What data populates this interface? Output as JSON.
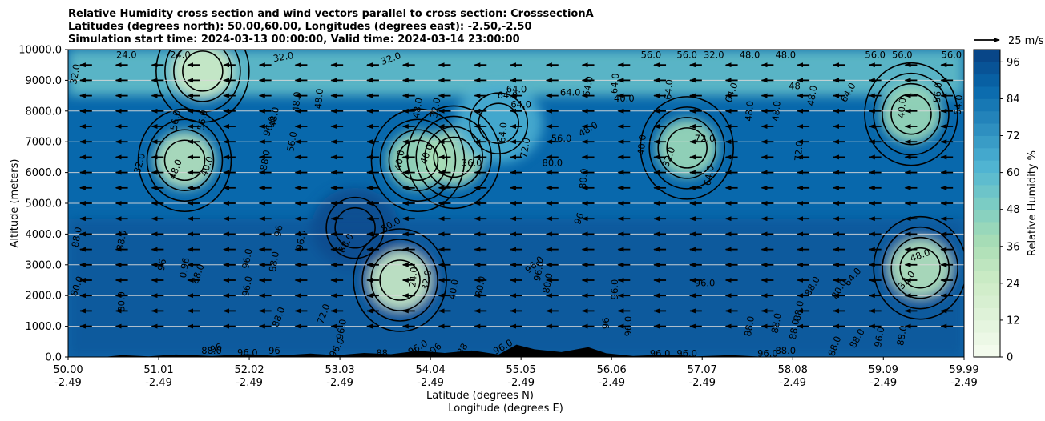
{
  "chart_data": {
    "type": "heatmap",
    "title_lines": [
      "Relative Humidity cross section and wind vectors parallel to cross section: CrosssectionA",
      "Latitudes (degrees north): 50.00,60.00, Longitudes (degrees east): -2.50,-2.50",
      "Simulation start time: 2024-03-13 00:00:00, Valid time: 2024-03-14 23:00:00"
    ],
    "ylabel": "Altitude (meters)",
    "xlabel_lat": "Latitude (degrees N)",
    "xlabel_lon": "Longitude (degrees E)",
    "colorbar_label": "Relative Humidity %",
    "ylim": [
      0,
      10000
    ],
    "xlim": [
      50.0,
      59.99
    ],
    "grid": "horizontal",
    "y_ticks": [
      {
        "value": 0,
        "label": "0.0"
      },
      {
        "value": 1000,
        "label": "1000.0"
      },
      {
        "value": 2000,
        "label": "2000.0"
      },
      {
        "value": 3000,
        "label": "3000.0"
      },
      {
        "value": 4000,
        "label": "4000.0"
      },
      {
        "value": 5000,
        "label": "5000.0"
      },
      {
        "value": 6000,
        "label": "6000.0"
      },
      {
        "value": 7000,
        "label": "7000.0"
      },
      {
        "value": 8000,
        "label": "8000.0"
      },
      {
        "value": 9000,
        "label": "9000.0"
      },
      {
        "value": 10000,
        "label": "10000.0"
      }
    ],
    "x_ticks": [
      {
        "lat": 50.0,
        "label_lat": "50.00",
        "label_lon": "-2.49"
      },
      {
        "lat": 51.01,
        "label_lat": "51.01",
        "label_lon": "-2.49"
      },
      {
        "lat": 52.02,
        "label_lat": "52.02",
        "label_lon": "-2.49"
      },
      {
        "lat": 53.03,
        "label_lat": "53.03",
        "label_lon": "-2.49"
      },
      {
        "lat": 54.04,
        "label_lat": "54.04",
        "label_lon": "-2.49"
      },
      {
        "lat": 55.05,
        "label_lat": "55.05",
        "label_lon": "-2.49"
      },
      {
        "lat": 56.06,
        "label_lat": "56.06",
        "label_lon": "-2.49"
      },
      {
        "lat": 57.07,
        "label_lat": "57.07",
        "label_lon": "-2.49"
      },
      {
        "lat": 58.08,
        "label_lat": "58.08",
        "label_lon": "-2.49"
      },
      {
        "lat": 59.09,
        "label_lat": "59.09",
        "label_lon": "-2.49"
      },
      {
        "lat": 59.99,
        "label_lat": "59.99",
        "label_lon": "-2.49"
      }
    ],
    "colorbar": {
      "min": 0,
      "max": 100,
      "step": 4,
      "tick_values": [
        0,
        12,
        24,
        36,
        48,
        60,
        72,
        84,
        96
      ],
      "tick_labels": [
        "0",
        "12",
        "24",
        "36",
        "48",
        "60",
        "72",
        "84",
        "96"
      ],
      "colormap": "GnBu",
      "color_stops": [
        "#f7fcf0",
        "#e0f3db",
        "#ccebc5",
        "#a8ddb5",
        "#7bccc4",
        "#4eb3d3",
        "#2b8cbe",
        "#0868ac",
        "#084081"
      ]
    },
    "humidity_features": [
      {
        "lat": 51.3,
        "alt": 6400,
        "rh": 32
      },
      {
        "lat": 53.7,
        "alt": 2500,
        "rh": 24
      },
      {
        "lat": 53.9,
        "alt": 6400,
        "rh": 40
      },
      {
        "lat": 54.3,
        "alt": 6500,
        "rh": 36
      },
      {
        "lat": 56.9,
        "alt": 6800,
        "rh": 40
      },
      {
        "lat": 59.5,
        "alt": 2900,
        "rh": 32
      },
      {
        "lat": 59.4,
        "alt": 7900,
        "rh": 40
      },
      {
        "lat": 51.5,
        "alt": 9300,
        "rh": 24
      },
      {
        "lat": 54.8,
        "alt": 7600,
        "rh": 64
      },
      {
        "lat": 53.2,
        "alt": 4200,
        "rh": 96
      }
    ],
    "contour_labels": [
      {
        "lat": 50.65,
        "alt": 9820,
        "text": "24.0",
        "rot": 0
      },
      {
        "lat": 51.25,
        "alt": 9820,
        "text": "24.0",
        "rot": 0
      },
      {
        "lat": 52.4,
        "alt": 9750,
        "text": "32.0",
        "rot": -10
      },
      {
        "lat": 53.6,
        "alt": 9700,
        "text": "32.0",
        "rot": -20
      },
      {
        "lat": 56.5,
        "alt": 9820,
        "text": "56.0",
        "rot": 0
      },
      {
        "lat": 56.9,
        "alt": 9820,
        "text": "56.0",
        "rot": 0
      },
      {
        "lat": 57.2,
        "alt": 9820,
        "text": "32.0",
        "rot": 0
      },
      {
        "lat": 57.6,
        "alt": 9820,
        "text": "48.0",
        "rot": 0
      },
      {
        "lat": 58.0,
        "alt": 9820,
        "text": "48.0",
        "rot": 0
      },
      {
        "lat": 59.0,
        "alt": 9820,
        "text": "56.0",
        "rot": 0
      },
      {
        "lat": 59.3,
        "alt": 9820,
        "text": "56.0",
        "rot": 0
      },
      {
        "lat": 59.85,
        "alt": 9820,
        "text": "56.0",
        "rot": 0
      },
      {
        "lat": 50.08,
        "alt": 9200,
        "text": "32.0",
        "rot": -80
      },
      {
        "lat": 51.2,
        "alt": 7700,
        "text": "56.0",
        "rot": -80
      },
      {
        "lat": 51.5,
        "alt": 7700,
        "text": "56.0",
        "rot": -80
      },
      {
        "lat": 51.55,
        "alt": 6200,
        "text": "40.0",
        "rot": -70
      },
      {
        "lat": 51.2,
        "alt": 6100,
        "text": "48.0",
        "rot": -70
      },
      {
        "lat": 50.8,
        "alt": 6300,
        "text": "32.0",
        "rot": -75
      },
      {
        "lat": 52.3,
        "alt": 7800,
        "text": "48.0",
        "rot": -80
      },
      {
        "lat": 52.55,
        "alt": 8300,
        "text": "48.0",
        "rot": -85
      },
      {
        "lat": 52.8,
        "alt": 8400,
        "text": "48.0",
        "rot": -85
      },
      {
        "lat": 52.25,
        "alt": 7500,
        "text": "96.0",
        "rot": -70
      },
      {
        "lat": 52.5,
        "alt": 7000,
        "text": "56.0",
        "rot": -80
      },
      {
        "lat": 52.2,
        "alt": 6400,
        "text": "88.0",
        "rot": -80
      },
      {
        "lat": 53.9,
        "alt": 8100,
        "text": "48.0",
        "rot": -80
      },
      {
        "lat": 54.1,
        "alt": 8100,
        "text": "32.0",
        "rot": -80
      },
      {
        "lat": 53.7,
        "alt": 6400,
        "text": "40.0",
        "rot": -80
      },
      {
        "lat": 54.0,
        "alt": 6600,
        "text": "40.0",
        "rot": -70
      },
      {
        "lat": 54.5,
        "alt": 6300,
        "text": "36.0",
        "rot": 0
      },
      {
        "lat": 54.85,
        "alt": 7300,
        "text": "64.0",
        "rot": -85
      },
      {
        "lat": 55.1,
        "alt": 6800,
        "text": "72.0",
        "rot": -80
      },
      {
        "lat": 55.0,
        "alt": 8700,
        "text": "64.0",
        "rot": 0
      },
      {
        "lat": 54.9,
        "alt": 8500,
        "text": "64.0",
        "rot": 0
      },
      {
        "lat": 55.05,
        "alt": 8200,
        "text": "64.0",
        "rot": 0
      },
      {
        "lat": 55.6,
        "alt": 8600,
        "text": "64.0",
        "rot": 0
      },
      {
        "lat": 55.8,
        "alt": 8800,
        "text": "64.0",
        "rot": -80
      },
      {
        "lat": 55.5,
        "alt": 7100,
        "text": "56.0",
        "rot": 0
      },
      {
        "lat": 55.8,
        "alt": 7400,
        "text": "48.0",
        "rot": -30
      },
      {
        "lat": 56.1,
        "alt": 8900,
        "text": "64.0",
        "rot": -85
      },
      {
        "lat": 56.2,
        "alt": 8400,
        "text": "40.0",
        "rot": 0
      },
      {
        "lat": 56.7,
        "alt": 8700,
        "text": "64.0",
        "rot": -85
      },
      {
        "lat": 56.4,
        "alt": 6900,
        "text": "40.0",
        "rot": -85
      },
      {
        "lat": 56.7,
        "alt": 6500,
        "text": "32.0",
        "rot": -70
      },
      {
        "lat": 57.1,
        "alt": 7100,
        "text": "72.0",
        "rot": 0
      },
      {
        "lat": 55.4,
        "alt": 6300,
        "text": "80.0",
        "rot": 0
      },
      {
        "lat": 55.75,
        "alt": 5800,
        "text": "80.0",
        "rot": -85
      },
      {
        "lat": 57.15,
        "alt": 5900,
        "text": "64.0",
        "rot": -80
      },
      {
        "lat": 57.4,
        "alt": 8600,
        "text": "64.0",
        "rot": -70
      },
      {
        "lat": 57.6,
        "alt": 8000,
        "text": "48.0",
        "rot": -85
      },
      {
        "lat": 57.9,
        "alt": 8000,
        "text": "48.0",
        "rot": -85
      },
      {
        "lat": 58.1,
        "alt": 8800,
        "text": "48",
        "rot": 0
      },
      {
        "lat": 58.3,
        "alt": 8500,
        "text": "48.0",
        "rot": -80
      },
      {
        "lat": 58.7,
        "alt": 8600,
        "text": "64.0",
        "rot": -60
      },
      {
        "lat": 59.3,
        "alt": 8100,
        "text": "40.0",
        "rot": -85
      },
      {
        "lat": 59.7,
        "alt": 8600,
        "text": "56.0",
        "rot": -85
      },
      {
        "lat": 59.93,
        "alt": 8200,
        "text": "64.0",
        "rot": -85
      },
      {
        "lat": 58.15,
        "alt": 6700,
        "text": "72.0",
        "rot": -85
      },
      {
        "lat": 50.1,
        "alt": 3900,
        "text": "88.0",
        "rot": -80
      },
      {
        "lat": 50.6,
        "alt": 3800,
        "text": "88.0",
        "rot": -80
      },
      {
        "lat": 51.05,
        "alt": 3000,
        "text": "96",
        "rot": -80
      },
      {
        "lat": 51.3,
        "alt": 2900,
        "text": "0.96",
        "rot": -80
      },
      {
        "lat": 50.1,
        "alt": 2300,
        "text": "80.0",
        "rot": -70
      },
      {
        "lat": 50.6,
        "alt": 1800,
        "text": "80.0",
        "rot": -90
      },
      {
        "lat": 51.45,
        "alt": 2700,
        "text": "88.0",
        "rot": -70
      },
      {
        "lat": 52.0,
        "alt": 2300,
        "text": "96.0",
        "rot": -80
      },
      {
        "lat": 52.35,
        "alt": 4100,
        "text": "96",
        "rot": -80
      },
      {
        "lat": 52.6,
        "alt": 3800,
        "text": "96.0",
        "rot": -80
      },
      {
        "lat": 52.0,
        "alt": 3200,
        "text": "96.0",
        "rot": -80
      },
      {
        "lat": 52.3,
        "alt": 3100,
        "text": "88.0",
        "rot": -80
      },
      {
        "lat": 53.1,
        "alt": 3700,
        "text": "88.0",
        "rot": -60
      },
      {
        "lat": 52.35,
        "alt": 1300,
        "text": "88.0",
        "rot": -70
      },
      {
        "lat": 52.85,
        "alt": 1400,
        "text": "72.0",
        "rot": -70
      },
      {
        "lat": 53.6,
        "alt": 4300,
        "text": "80.0",
        "rot": -30
      },
      {
        "lat": 53.85,
        "alt": 2600,
        "text": "24.0",
        "rot": -85
      },
      {
        "lat": 54.0,
        "alt": 2500,
        "text": "32.0",
        "rot": -80
      },
      {
        "lat": 54.3,
        "alt": 2200,
        "text": "40.0",
        "rot": -80
      },
      {
        "lat": 54.6,
        "alt": 2300,
        "text": "80.0",
        "rot": -80
      },
      {
        "lat": 55.2,
        "alt": 3000,
        "text": "96.0",
        "rot": -40
      },
      {
        "lat": 55.25,
        "alt": 2800,
        "text": "96.0",
        "rot": -80
      },
      {
        "lat": 55.35,
        "alt": 2400,
        "text": "80.0",
        "rot": -80
      },
      {
        "lat": 56.1,
        "alt": 2200,
        "text": "96.0",
        "rot": -90
      },
      {
        "lat": 57.1,
        "alt": 2400,
        "text": "96.0",
        "rot": 0
      },
      {
        "lat": 56.0,
        "alt": 1100,
        "text": "96",
        "rot": -90
      },
      {
        "lat": 56.25,
        "alt": 1000,
        "text": "96.0",
        "rot": -90
      },
      {
        "lat": 57.6,
        "alt": 1000,
        "text": "88.0",
        "rot": -80
      },
      {
        "lat": 57.9,
        "alt": 1100,
        "text": "88.0",
        "rot": -80
      },
      {
        "lat": 58.15,
        "alt": 1500,
        "text": "88.0",
        "rot": -80
      },
      {
        "lat": 58.3,
        "alt": 2300,
        "text": "88.0",
        "rot": -60
      },
      {
        "lat": 58.6,
        "alt": 2200,
        "text": "80.0",
        "rot": -60
      },
      {
        "lat": 58.75,
        "alt": 2600,
        "text": "64.0",
        "rot": -50
      },
      {
        "lat": 59.35,
        "alt": 2500,
        "text": "32.0",
        "rot": -50
      },
      {
        "lat": 59.5,
        "alt": 3300,
        "text": "48.0",
        "rot": -20
      },
      {
        "lat": 58.1,
        "alt": 900,
        "text": "88.0",
        "rot": -80
      },
      {
        "lat": 58.55,
        "alt": 350,
        "text": "88.0",
        "rot": -70
      },
      {
        "lat": 58.8,
        "alt": 600,
        "text": "88.0",
        "rot": -60
      },
      {
        "lat": 59.05,
        "alt": 650,
        "text": "96.0",
        "rot": -80
      },
      {
        "lat": 59.3,
        "alt": 700,
        "text": "88.0",
        "rot": -80
      },
      {
        "lat": 58.0,
        "alt": 200,
        "text": "88.0",
        "rot": 0
      },
      {
        "lat": 57.8,
        "alt": 100,
        "text": "96.0",
        "rot": 0
      },
      {
        "lat": 51.6,
        "alt": 200,
        "text": "88.0",
        "rot": 0
      },
      {
        "lat": 51.65,
        "alt": 280,
        "text": "96",
        "rot": -20
      },
      {
        "lat": 52.0,
        "alt": 130,
        "text": "96.0",
        "rot": 0
      },
      {
        "lat": 52.3,
        "alt": 200,
        "text": "96",
        "rot": 0
      },
      {
        "lat": 53.0,
        "alt": 300,
        "text": "96.0",
        "rot": -60
      },
      {
        "lat": 53.5,
        "alt": 120,
        "text": "88",
        "rot": 0
      },
      {
        "lat": 53.9,
        "alt": 300,
        "text": "96.0",
        "rot": -30
      },
      {
        "lat": 54.1,
        "alt": 270,
        "text": "96",
        "rot": -40
      },
      {
        "lat": 54.4,
        "alt": 250,
        "text": "88",
        "rot": -60
      },
      {
        "lat": 54.85,
        "alt": 320,
        "text": "96.0",
        "rot": -30
      },
      {
        "lat": 56.6,
        "alt": 100,
        "text": "96.0",
        "rot": 0
      },
      {
        "lat": 56.9,
        "alt": 100,
        "text": "96.0",
        "rot": 0
      },
      {
        "lat": 53.05,
        "alt": 900,
        "text": "96.0",
        "rot": -80
      },
      {
        "lat": 55.7,
        "alt": 4500,
        "text": "96",
        "rot": -70
      }
    ],
    "wind_vectors": {
      "reference_label": "25 m/s",
      "reference_speed": 25,
      "levels_m": [
        1000,
        1500,
        2000,
        2500,
        3000,
        3500,
        4000,
        4500,
        5000,
        5500,
        6000,
        6500,
        7000,
        7500,
        8000,
        8500,
        9000,
        9500
      ],
      "note": "predominantly southward along the section, roughly 10-15 m/s"
    }
  },
  "wind_reference_label": "25 m/s"
}
